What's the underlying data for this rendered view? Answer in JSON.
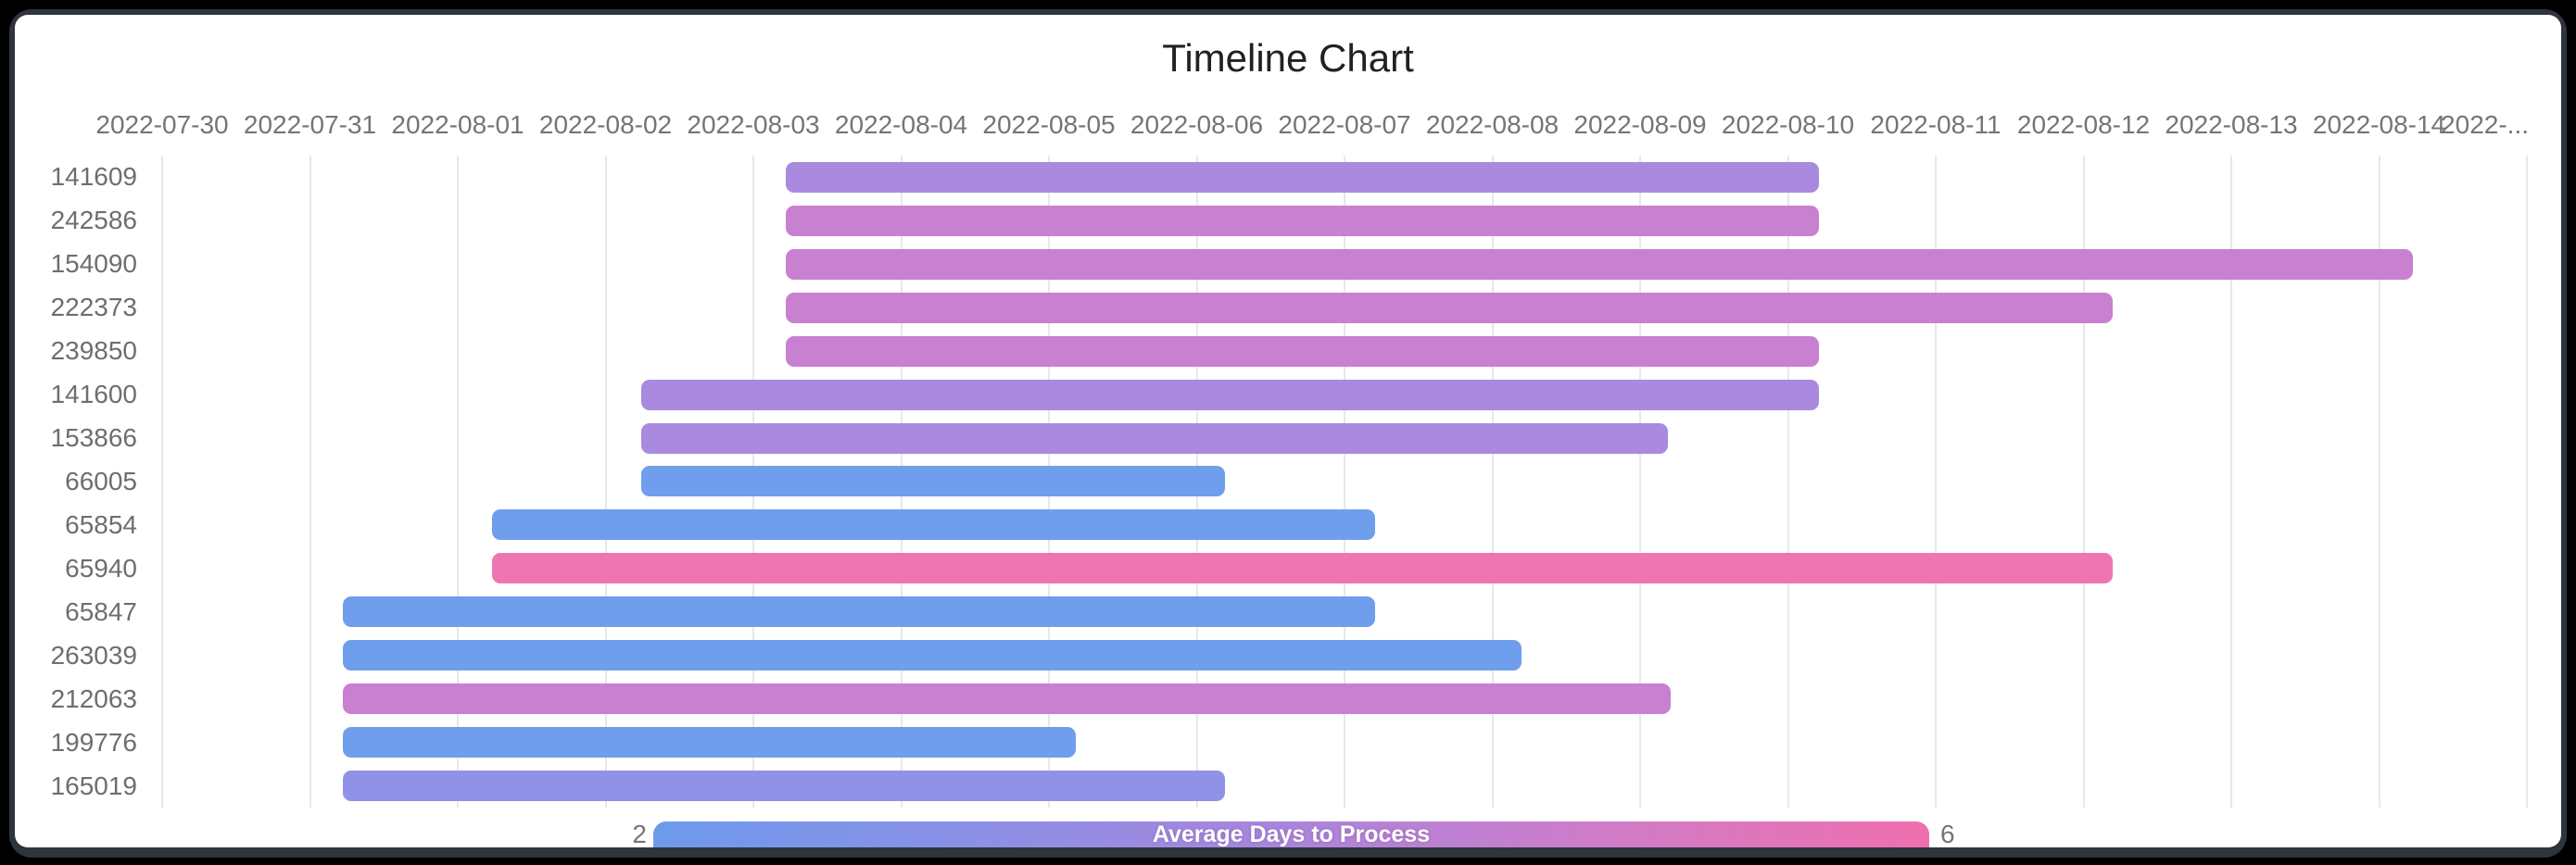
{
  "window": {
    "frame_color": "#2f353a",
    "card_color": "#ffffff",
    "background_color": "#000000"
  },
  "chart": {
    "title": "Timeline Chart",
    "text_color": "#757575",
    "title_color": "#202124",
    "gridline_color": "#e8e8e8",
    "legend": {
      "min_label": "2",
      "max_label": "6",
      "title": "Average Days to Process",
      "gradient": [
        "#6d9aec",
        "#8b90e6",
        "#ab85dc",
        "#d07cc8",
        "#f06fae"
      ]
    }
  },
  "chart_data": {
    "type": "timeline",
    "title": "Timeline Chart",
    "x_axis": {
      "start_date": "2022-07-30",
      "tick_labels": [
        "2022-07-30",
        "2022-07-31",
        "2022-08-01",
        "2022-08-02",
        "2022-08-03",
        "2022-08-04",
        "2022-08-05",
        "2022-08-06",
        "2022-08-07",
        "2022-08-08",
        "2022-08-09",
        "2022-08-10",
        "2022-08-11",
        "2022-08-12",
        "2022-08-13",
        "2022-08-14",
        "2022-..."
      ],
      "gridlines": true
    },
    "y_axis": {
      "categories": [
        "141609",
        "242586",
        "154090",
        "222373",
        "239850",
        "141600",
        "153866",
        "66005",
        "65854",
        "65940",
        "65847",
        "263039",
        "212063",
        "199776",
        "165019"
      ]
    },
    "legend": {
      "label": "Average Days to Process",
      "min": 2,
      "max": 6,
      "colormap": "blue-to-pink gradient"
    },
    "rows": [
      {
        "id": "141609",
        "start_day": 4.22,
        "end_day": 11.21,
        "start_date": "2022-08-03",
        "end_date": "2022-08-10",
        "duration_days": 7,
        "color": "#a98ade"
      },
      {
        "id": "242586",
        "start_day": 4.22,
        "end_day": 11.21,
        "start_date": "2022-08-03",
        "end_date": "2022-08-10",
        "duration_days": 7,
        "color": "#c980d0"
      },
      {
        "id": "154090",
        "start_day": 4.22,
        "end_day": 15.23,
        "start_date": "2022-08-03",
        "end_date": "2022-08-14",
        "duration_days": 11,
        "color": "#c980d0"
      },
      {
        "id": "222373",
        "start_day": 4.22,
        "end_day": 13.2,
        "start_date": "2022-08-03",
        "end_date": "2022-08-12",
        "duration_days": 9,
        "color": "#c980d0"
      },
      {
        "id": "239850",
        "start_day": 4.22,
        "end_day": 11.21,
        "start_date": "2022-08-03",
        "end_date": "2022-08-10",
        "duration_days": 7,
        "color": "#c980d0"
      },
      {
        "id": "141600",
        "start_day": 3.24,
        "end_day": 11.21,
        "start_date": "2022-08-02",
        "end_date": "2022-08-10",
        "duration_days": 8,
        "color": "#a98ade"
      },
      {
        "id": "153866",
        "start_day": 3.24,
        "end_day": 10.19,
        "start_date": "2022-08-02",
        "end_date": "2022-08-09",
        "duration_days": 7,
        "color": "#a98ade"
      },
      {
        "id": "66005",
        "start_day": 3.24,
        "end_day": 7.19,
        "start_date": "2022-08-02",
        "end_date": "2022-08-06",
        "duration_days": 4,
        "color": "#6f9eed"
      },
      {
        "id": "65854",
        "start_day": 2.23,
        "end_day": 8.21,
        "start_date": "2022-08-01",
        "end_date": "2022-08-07",
        "duration_days": 6,
        "color": "#6f9eed"
      },
      {
        "id": "65940",
        "start_day": 2.23,
        "end_day": 13.2,
        "start_date": "2022-08-01",
        "end_date": "2022-08-12",
        "duration_days": 11,
        "color": "#ef75b2"
      },
      {
        "id": "65847",
        "start_day": 1.22,
        "end_day": 8.21,
        "start_date": "2022-07-31",
        "end_date": "2022-08-07",
        "duration_days": 7,
        "color": "#6f9eed"
      },
      {
        "id": "263039",
        "start_day": 1.22,
        "end_day": 9.2,
        "start_date": "2022-07-31",
        "end_date": "2022-08-08",
        "duration_days": 8,
        "color": "#6f9eed"
      },
      {
        "id": "212063",
        "start_day": 1.22,
        "end_day": 10.21,
        "start_date": "2022-07-31",
        "end_date": "2022-08-09",
        "duration_days": 9,
        "color": "#c980d0"
      },
      {
        "id": "199776",
        "start_day": 1.22,
        "end_day": 6.18,
        "start_date": "2022-07-31",
        "end_date": "2022-08-05",
        "duration_days": 5,
        "color": "#6f9eed"
      },
      {
        "id": "165019",
        "start_day": 1.22,
        "end_day": 7.19,
        "start_date": "2022-07-31",
        "end_date": "2022-08-06",
        "duration_days": 6,
        "color": "#9092e8"
      }
    ]
  }
}
